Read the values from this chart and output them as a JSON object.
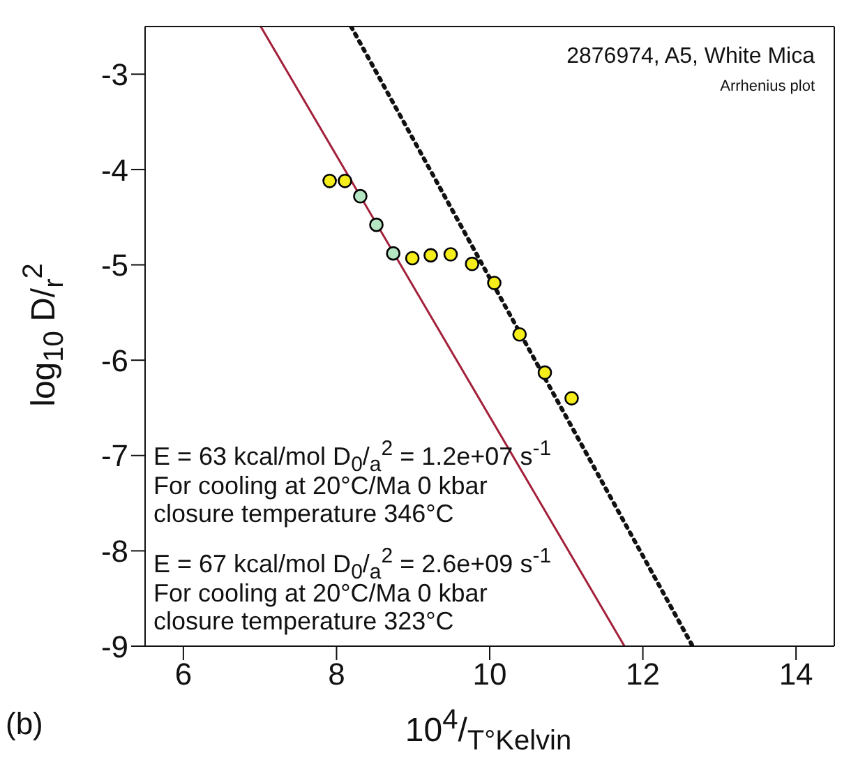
{
  "chart_data": {
    "type": "scatter",
    "title": "2876974, A5, White Mica",
    "subtitle": "Arrhenius plot",
    "xlabel": "10$^{4}$/$_{T°Kelvin}$",
    "ylabel": "log$_{10}$ D/$_{r}$$^{2}$",
    "annotations": [
      "E = 63 kcal/mol D$_{0}$/$_{a}$$^{2}$ = 1.2e+07 s$^{-1}$",
      "For cooling at 20°C/Ma 0 kbar",
      "closure temperature 346°C",
      "E = 67 kcal/mol D$_{0}$/$_{a}$$^{2}$ = 2.6e+09 s$^{-1}$",
      "For cooling at 20°C/Ma 0 kbar",
      "closure temperature 323°C",
      "(b)"
    ],
    "xlim": [
      5.5,
      14.5
    ],
    "ylim": [
      -9,
      -2.5
    ],
    "xticks": [
      6,
      8,
      10,
      12,
      14
    ],
    "yticks": [
      -9,
      -8,
      -7,
      -6,
      -5,
      -4,
      -3
    ],
    "grid": false,
    "series": [
      {
        "type": "line",
        "color": "#a3203a",
        "line_style": "solid",
        "marker": "none",
        "x": [
          7.01,
          11.76
        ],
        "values": [
          -2.5,
          -9
        ]
      },
      {
        "type": "line",
        "color": "#111111",
        "line_style": "dotted",
        "marker": "none",
        "x": [
          8.19,
          12.65
        ],
        "values": [
          -2.5,
          -9
        ]
      },
      {
        "marker": "circle",
        "x": [
          7.91,
          8.11,
          8.31,
          8.52,
          8.74,
          8.99,
          9.23,
          9.49,
          9.77,
          10.06,
          10.39,
          10.72,
          11.07
        ],
        "values": [
          -4.12,
          -4.12,
          -4.28,
          -4.58,
          -4.88,
          -4.93,
          -4.9,
          -4.89,
          -4.99,
          -5.19,
          -5.73,
          -6.13,
          -6.4
        ],
        "colors": [
          "#f5ee1a",
          "#f5ee1a",
          "#b5e6c4",
          "#b5e6c4",
          "#b5e6c4",
          "#f5ee1a",
          "#f5ee1a",
          "#f5ee1a",
          "#f5ee1a",
          "#f5ee1a",
          "#f5ee1a",
          "#f5ee1a",
          "#f5ee1a"
        ]
      }
    ]
  }
}
